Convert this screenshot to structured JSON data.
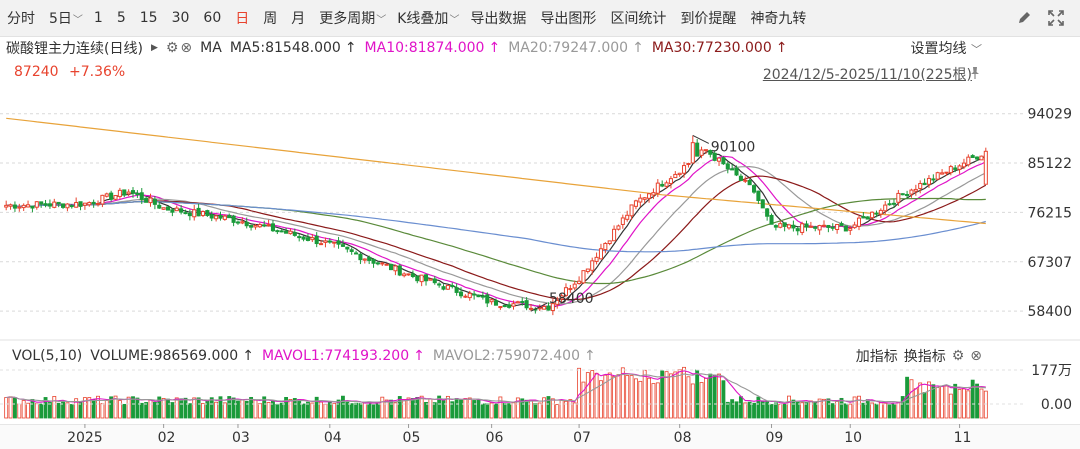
{
  "toolbar": {
    "periods": [
      {
        "label": "分时"
      },
      {
        "label": "5日",
        "dropdown": true
      },
      {
        "label": "1"
      },
      {
        "label": "5"
      },
      {
        "label": "15"
      },
      {
        "label": "30"
      },
      {
        "label": "60"
      },
      {
        "label": "日",
        "active": true
      },
      {
        "label": "周"
      },
      {
        "label": "月"
      },
      {
        "label": "更多周期",
        "dropdown": true
      },
      {
        "label": "K线叠加",
        "dropdown": true
      },
      {
        "label": "导出数据"
      },
      {
        "label": "导出图形"
      },
      {
        "label": "区间统计"
      },
      {
        "label": "到价提醒"
      },
      {
        "label": "神奇九转"
      }
    ],
    "icons": [
      "draw-pen-icon",
      "fullscreen-icon"
    ]
  },
  "header": {
    "name": "碳酸锂主力连续(日线)",
    "ma_label": "MA",
    "ma5": "MA5:81548.000",
    "ma10": "MA10:81874.000",
    "ma20": "MA20:79247.000",
    "ma30": "MA30:77230.000",
    "setting_label": "设置均线",
    "price": "87240",
    "change": "+7.36%",
    "range": "2024/12/5-2025/11/10(225根)"
  },
  "volume_header": {
    "vol_label": "VOL(5,10)",
    "volume": "VOLUME:986569.000",
    "mavol1": "MAVOL1:774193.200",
    "mavol2": "MAVOL2:759072.400",
    "add_indicator": "加指标",
    "switch_indicator": "换指标"
  },
  "colors": {
    "up": "#e8432e",
    "down": "#1a9a3a",
    "ma5": "#333333",
    "ma10": "#e014c8",
    "ma20": "#999999",
    "ma30": "#8b1a1a",
    "ma60": "#5a8a3a",
    "ma120": "#6a8ed0",
    "ma250": "#e8a33a",
    "active_tab": "#e8432e"
  },
  "chart_data": {
    "type": "candlestick",
    "title": "碳酸锂主力连续(日线)",
    "x_start": "2024-12-05",
    "x_end": "2025-11-10",
    "bar_count": 225,
    "y_ticks": [
      94029,
      85122,
      76215,
      67307,
      58400
    ],
    "y_range": [
      55000,
      96500
    ],
    "x_ticks": [
      "2025",
      "02",
      "03",
      "04",
      "05",
      "06",
      "07",
      "08",
      "09",
      "10",
      "11"
    ],
    "annotations": [
      {
        "label": "90100",
        "type": "high",
        "value": 90100,
        "month": "08"
      },
      {
        "label": "58400",
        "type": "low",
        "value": 58400,
        "month": "06"
      }
    ],
    "close_price_path": [
      {
        "x": "2024-12",
        "y": 77500
      },
      {
        "x": "2025-01",
        "y": 77800
      },
      {
        "x": "2025-01-15",
        "y": 80000
      },
      {
        "x": "2025-02",
        "y": 77000
      },
      {
        "x": "2025-03",
        "y": 74800
      },
      {
        "x": "2025-04",
        "y": 70500
      },
      {
        "x": "2025-05",
        "y": 65000
      },
      {
        "x": "2025-06",
        "y": 60000
      },
      {
        "x": "2025-06-20",
        "y": 59200
      },
      {
        "x": "2025-07",
        "y": 64500
      },
      {
        "x": "2025-07-20",
        "y": 78000
      },
      {
        "x": "2025-08-10",
        "y": 87500
      },
      {
        "x": "2025-08-25",
        "y": 80000
      },
      {
        "x": "2025-09",
        "y": 73500
      },
      {
        "x": "2025-10",
        "y": 73500
      },
      {
        "x": "2025-10-20",
        "y": 80000
      },
      {
        "x": "2025-11-10",
        "y": 87240
      }
    ],
    "moving_averages": [
      {
        "name": "MA5",
        "last": 81548
      },
      {
        "name": "MA10",
        "last": 81874
      },
      {
        "name": "MA20",
        "last": 79247
      },
      {
        "name": "MA30",
        "last": 77230
      }
    ],
    "volume": {
      "y_ticks": [
        "177万",
        "0.00"
      ],
      "last": 986569,
      "mavol1_last": 774193.2,
      "mavol2_last": 759072.4
    }
  }
}
